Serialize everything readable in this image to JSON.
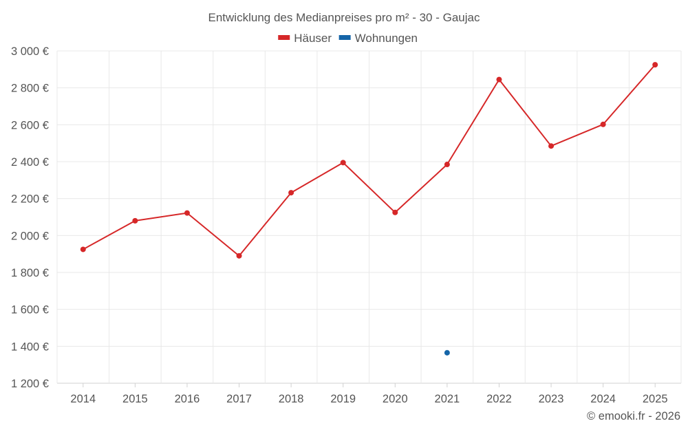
{
  "chart_data": {
    "type": "line",
    "title": "Entwicklung des Medianpreises pro m² - 30 - Gaujac",
    "categories": [
      "2014",
      "2015",
      "2016",
      "2017",
      "2018",
      "2019",
      "2020",
      "2021",
      "2022",
      "2023",
      "2024",
      "2025"
    ],
    "series": [
      {
        "name": "Häuser",
        "color": "#d62728",
        "values": [
          1925,
          2080,
          2122,
          1890,
          2232,
          2395,
          2125,
          2385,
          2845,
          2485,
          2602,
          2925
        ]
      },
      {
        "name": "Wohnungen",
        "color": "#1565a8",
        "values": [
          null,
          null,
          null,
          null,
          null,
          null,
          null,
          1365,
          null,
          null,
          null,
          null
        ]
      }
    ],
    "ylim": [
      1200,
      3000
    ],
    "yticks": [
      1200,
      1400,
      1600,
      1800,
      2000,
      2200,
      2400,
      2600,
      2800,
      3000
    ],
    "ytick_labels": [
      "1 200 €",
      "1 400 €",
      "1 600 €",
      "1 800 €",
      "2 000 €",
      "2 200 €",
      "2 400 €",
      "2 600 €",
      "2 800 €",
      "3 000 €"
    ],
    "xlabel": "",
    "ylabel": "",
    "legend_position": "top-center",
    "grid": true
  },
  "credit": "© emooki.fr - 2026"
}
